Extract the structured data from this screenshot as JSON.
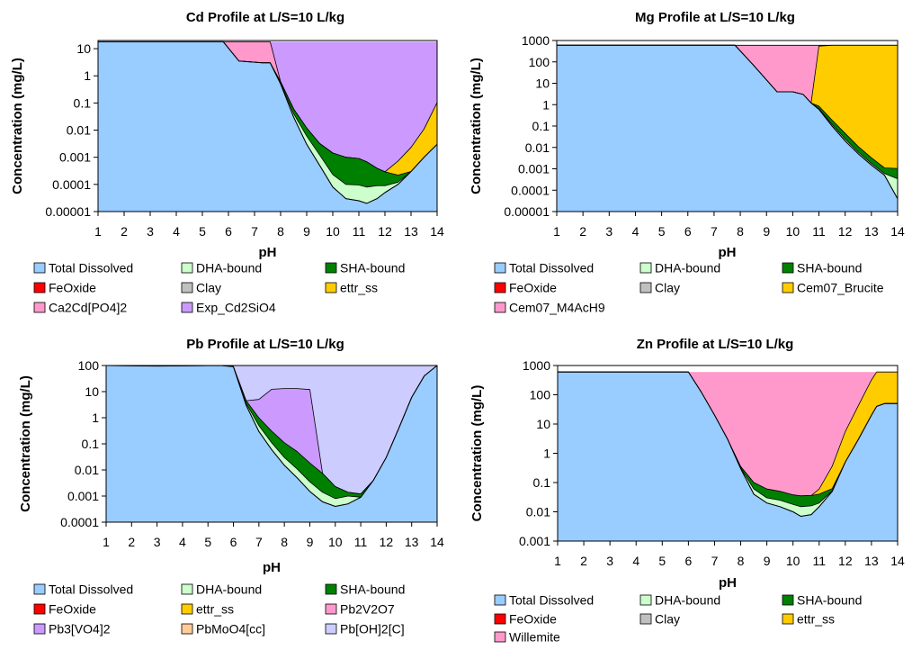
{
  "chart_data": [
    {
      "type": "area",
      "title": "Cd Profile at L/S=10 L/kg",
      "xlabel": "pH",
      "ylabel": "Concentration (mg/L)",
      "xlim": [
        1,
        14
      ],
      "ylim": [
        1e-05,
        20
      ],
      "yscale": "log",
      "xticks": [
        "1",
        "2",
        "3",
        "4",
        "5",
        "6",
        "7",
        "8",
        "9",
        "10",
        "11",
        "12",
        "13",
        "14"
      ],
      "yticks": [
        "0.00001",
        "0.0001",
        "0.001",
        "0.01",
        "0.1",
        "1",
        "10"
      ],
      "legend_entries": [
        "Total Dissolved",
        "DHA-bound",
        "SHA-bound",
        "FeOxide",
        "Clay",
        "ettr_ss",
        "Ca2Cd[PO4]2",
        "Exp_Cd2SiO4"
      ],
      "legend_colors": [
        "#99ccff",
        "#ccffcc",
        "#008000",
        "#ff0000",
        "#c0c0c0",
        "#ffcc00",
        "#ff99cc",
        "#cc99ff"
      ],
      "total": 18,
      "x": [
        1,
        5.8,
        6.4,
        7.3,
        7.6,
        8,
        8.5,
        9,
        9.5,
        10,
        10.5,
        11,
        11.3,
        11.7,
        12,
        12.5,
        13,
        13.5,
        14
      ],
      "series": [
        {
          "name": "Total Dissolved",
          "values": [
            18,
            18,
            3.5,
            3,
            3,
            0.5,
            0.03,
            0.003,
            0.0005,
            8e-05,
            3e-05,
            2.5e-05,
            2e-05,
            3e-05,
            5e-05,
            0.0001,
            0.0003,
            0.001,
            0.003
          ]
        },
        {
          "name": "DHA-bound",
          "values": [
            0,
            0,
            0,
            0,
            0,
            0.05,
            0.01,
            0.003,
            0.0007,
            0.00015,
            7e-05,
            7e-05,
            6e-05,
            6e-05,
            4e-05,
            2e-05,
            0,
            0,
            0
          ]
        },
        {
          "name": "SHA-bound",
          "values": [
            0,
            0,
            0,
            0,
            0,
            0.05,
            0.02,
            0.006,
            0.002,
            0.0012,
            0.0009,
            0.0008,
            0.0006,
            0.0003,
            0.0002,
            0.0001,
            0,
            0,
            0
          ]
        },
        {
          "name": "FeOxide",
          "values": [
            0,
            0,
            0,
            0,
            0,
            0,
            0,
            0,
            0,
            0,
            0,
            0,
            0,
            0,
            0,
            0,
            0,
            0,
            0
          ]
        },
        {
          "name": "Clay",
          "values": [
            0,
            0,
            0,
            0,
            0,
            0,
            0,
            0,
            0,
            0,
            0,
            0,
            0,
            0,
            0,
            0,
            0,
            0,
            0
          ]
        },
        {
          "name": "ettr_ss",
          "values": [
            0,
            0,
            0,
            0,
            0,
            0,
            0,
            0,
            0,
            0,
            0,
            0,
            0,
            0,
            0,
            0.0005,
            0.002,
            0.01,
            0.1
          ]
        },
        {
          "name": "Ca2Cd[PO4]2",
          "values": [
            0,
            0,
            14.5,
            15,
            15,
            0,
            0,
            0,
            0,
            0,
            0,
            0,
            0,
            0,
            0,
            0,
            0,
            0,
            0
          ]
        }
      ]
    },
    {
      "type": "area",
      "title": "Mg Profile at L/S=10 L/kg",
      "xlabel": "pH",
      "ylabel": "Concentration (mg/L)",
      "xlim": [
        1,
        14
      ],
      "ylim": [
        1e-05,
        1000
      ],
      "yscale": "log",
      "xticks": [
        "1",
        "2",
        "3",
        "4",
        "5",
        "6",
        "7",
        "8",
        "9",
        "10",
        "11",
        "12",
        "13",
        "14"
      ],
      "yticks": [
        "0.00001",
        "0.0001",
        "0.001",
        "0.01",
        "0.1",
        "1",
        "10",
        "100",
        "1000"
      ],
      "legend_entries": [
        "Total Dissolved",
        "DHA-bound",
        "SHA-bound",
        "FeOxide",
        "Clay",
        "Cem07_Brucite",
        "Cem07_M4AcH9"
      ],
      "legend_colors": [
        "#99ccff",
        "#ccffcc",
        "#008000",
        "#ff0000",
        "#c0c0c0",
        "#ffcc00",
        "#ff99cc"
      ],
      "total": 600,
      "x": [
        1,
        7.8,
        8.5,
        9.4,
        10,
        10.4,
        10.7,
        11,
        11.5,
        12,
        12.5,
        13,
        13.5,
        14
      ],
      "series": [
        {
          "name": "Total Dissolved",
          "values": [
            600,
            600,
            70,
            4,
            4,
            3,
            1.2,
            0.6,
            0.1,
            0.02,
            0.005,
            0.0015,
            0.0005,
            4e-05
          ]
        },
        {
          "name": "DHA-bound",
          "values": [
            0,
            0,
            0,
            0,
            0,
            0,
            0,
            0.05,
            0.02,
            0.005,
            0.001,
            0.0003,
            0.0001,
            0.0003
          ]
        },
        {
          "name": "SHA-bound",
          "values": [
            0,
            0,
            0,
            0,
            0,
            0,
            0,
            0.2,
            0.07,
            0.02,
            0.005,
            0.0015,
            0.0005,
            0.0007
          ]
        },
        {
          "name": "FeOxide",
          "values": [
            0,
            0,
            0,
            0,
            0,
            0,
            0,
            0,
            0,
            0,
            0,
            0,
            0,
            0
          ]
        },
        {
          "name": "Clay",
          "values": [
            0,
            0,
            0,
            0,
            0,
            0,
            0,
            0,
            0,
            0,
            0,
            0,
            0,
            0
          ]
        },
        {
          "name": "Cem07_Brucite",
          "values": [
            0,
            0,
            0,
            0,
            0,
            0,
            0,
            550,
            600,
            600,
            600,
            600,
            600,
            600
          ]
        },
        {
          "name": "Cem07_M4AcH9",
          "values": [
            0,
            0,
            530,
            596,
            596,
            597,
            599,
            50,
            0,
            0,
            0,
            0,
            0,
            0
          ]
        }
      ]
    },
    {
      "type": "area",
      "title": "Pb Profile at L/S=10 L/kg",
      "xlabel": "pH",
      "ylabel": "Concentration (mg/L)",
      "xlim": [
        1,
        14
      ],
      "ylim": [
        0.0001,
        100
      ],
      "yscale": "log",
      "xticks": [
        "1",
        "2",
        "3",
        "4",
        "5",
        "6",
        "7",
        "8",
        "9",
        "10",
        "11",
        "12",
        "13",
        "14"
      ],
      "yticks": [
        "0.0001",
        "0.001",
        "0.01",
        "0.1",
        "1",
        "10",
        "100"
      ],
      "legend_entries": [
        "Total Dissolved",
        "DHA-bound",
        "SHA-bound",
        "FeOxide",
        "ettr_ss",
        "Pb2V2O7",
        "Pb3[VO4]2",
        "PbMoO4[cc]",
        "Pb[OH]2[C]"
      ],
      "legend_colors": [
        "#99ccff",
        "#ccffcc",
        "#008000",
        "#ff0000",
        "#ffcc00",
        "#ff99cc",
        "#cc99ff",
        "#ffcc99",
        "#ccccff"
      ],
      "total": 110,
      "x": [
        1,
        3,
        5.5,
        6,
        6.5,
        7,
        7.5,
        8,
        8.5,
        9,
        9.5,
        10,
        10.5,
        11,
        11.5,
        12,
        12.5,
        13,
        13.5,
        14
      ],
      "series": [
        {
          "name": "Total Dissolved",
          "values": [
            110,
            95,
            100,
            90,
            3,
            0.3,
            0.06,
            0.015,
            0.005,
            0.0015,
            0.0006,
            0.0004,
            0.0005,
            0.0009,
            0.004,
            0.03,
            0.4,
            6,
            40,
            100
          ]
        },
        {
          "name": "DHA-bound",
          "values": [
            0,
            0,
            0,
            0,
            0.5,
            0.2,
            0.05,
            0.015,
            0.006,
            0.002,
            0.0008,
            0.0004,
            0.0005,
            0,
            0,
            0,
            0,
            0,
            0,
            0
          ]
        },
        {
          "name": "SHA-bound",
          "values": [
            0,
            0,
            0,
            0,
            1,
            0.5,
            0.2,
            0.08,
            0.04,
            0.015,
            0.006,
            0.0015,
            0.0004,
            0.0003,
            0,
            0,
            0,
            0,
            0,
            0
          ]
        },
        {
          "name": "FeOxide",
          "values": [
            0,
            0,
            0,
            0,
            0,
            0,
            0,
            0,
            0,
            0,
            0,
            0,
            0,
            0,
            0,
            0,
            0,
            0,
            0,
            0
          ]
        },
        {
          "name": "ettr_ss",
          "values": [
            0,
            0,
            0,
            0,
            0,
            0,
            0,
            0,
            0,
            0,
            0,
            0,
            0,
            0,
            0,
            0,
            0,
            0,
            0,
            0
          ]
        },
        {
          "name": "Pb2V2O7",
          "values": [
            0,
            0,
            0,
            0,
            0,
            0,
            0,
            0,
            0,
            0,
            0,
            0,
            0,
            0,
            0,
            0,
            0,
            0,
            0,
            0
          ]
        },
        {
          "name": "Pb3[VO4]2",
          "values": [
            0,
            0,
            0,
            0,
            0,
            4,
            12,
            13,
            13,
            12,
            0,
            0,
            0,
            0,
            0,
            0,
            0,
            0,
            0,
            0
          ]
        }
      ]
    },
    {
      "type": "area",
      "title": "Zn Profile at L/S=10 L/kg",
      "xlabel": "pH",
      "ylabel": "Concentration (mg/L)",
      "xlim": [
        1,
        14
      ],
      "ylim": [
        0.001,
        1000
      ],
      "yscale": "log",
      "xticks": [
        "1",
        "2",
        "3",
        "4",
        "5",
        "6",
        "7",
        "8",
        "9",
        "10",
        "11",
        "12",
        "13",
        "14"
      ],
      "yticks": [
        "0.001",
        "0.01",
        "0.1",
        "1",
        "10",
        "100",
        "1000"
      ],
      "legend_entries": [
        "Total Dissolved",
        "DHA-bound",
        "SHA-bound",
        "FeOxide",
        "Clay",
        "ettr_ss",
        "Willemite"
      ],
      "legend_colors": [
        "#99ccff",
        "#ccffcc",
        "#008000",
        "#ff0000",
        "#c0c0c0",
        "#ffcc00",
        "#ff99cc"
      ],
      "total": 600,
      "x": [
        1,
        6,
        6.5,
        7,
        7.5,
        8,
        8.5,
        9,
        9.5,
        10,
        10.3,
        10.7,
        11,
        11.5,
        12,
        12.5,
        13,
        13.2,
        13.5,
        14
      ],
      "series": [
        {
          "name": "Total Dissolved",
          "values": [
            600,
            600,
            120,
            20,
            3,
            0.3,
            0.04,
            0.02,
            0.015,
            0.01,
            0.007,
            0.008,
            0.015,
            0.05,
            0.5,
            3,
            20,
            40,
            50,
            50
          ]
        },
        {
          "name": "DHA-bound",
          "values": [
            0,
            0,
            0,
            0,
            0,
            0.02,
            0.02,
            0.01,
            0.01,
            0.008,
            0.008,
            0.008,
            0.005,
            0.002,
            0,
            0,
            0,
            0,
            0,
            0
          ]
        },
        {
          "name": "SHA-bound",
          "values": [
            0,
            0,
            0,
            0,
            0,
            0.03,
            0.04,
            0.03,
            0.025,
            0.02,
            0.02,
            0.02,
            0.02,
            0.01,
            0,
            0,
            0,
            0,
            0,
            0
          ]
        },
        {
          "name": "FeOxide",
          "values": [
            0,
            0,
            0,
            0,
            0,
            0,
            0,
            0,
            0,
            0,
            0,
            0,
            0,
            0,
            0,
            0,
            0,
            0,
            0,
            0
          ]
        },
        {
          "name": "Clay",
          "values": [
            0,
            0,
            0,
            0,
            0,
            0,
            0,
            0,
            0,
            0,
            0,
            0,
            0,
            0,
            0,
            0,
            0,
            0,
            0,
            0
          ]
        },
        {
          "name": "ettr_ss",
          "values": [
            0,
            0,
            0,
            0,
            0,
            0,
            0,
            0,
            0,
            0,
            0,
            0,
            0.02,
            0.3,
            5,
            40,
            300,
            560,
            550,
            550
          ]
        }
      ]
    }
  ]
}
